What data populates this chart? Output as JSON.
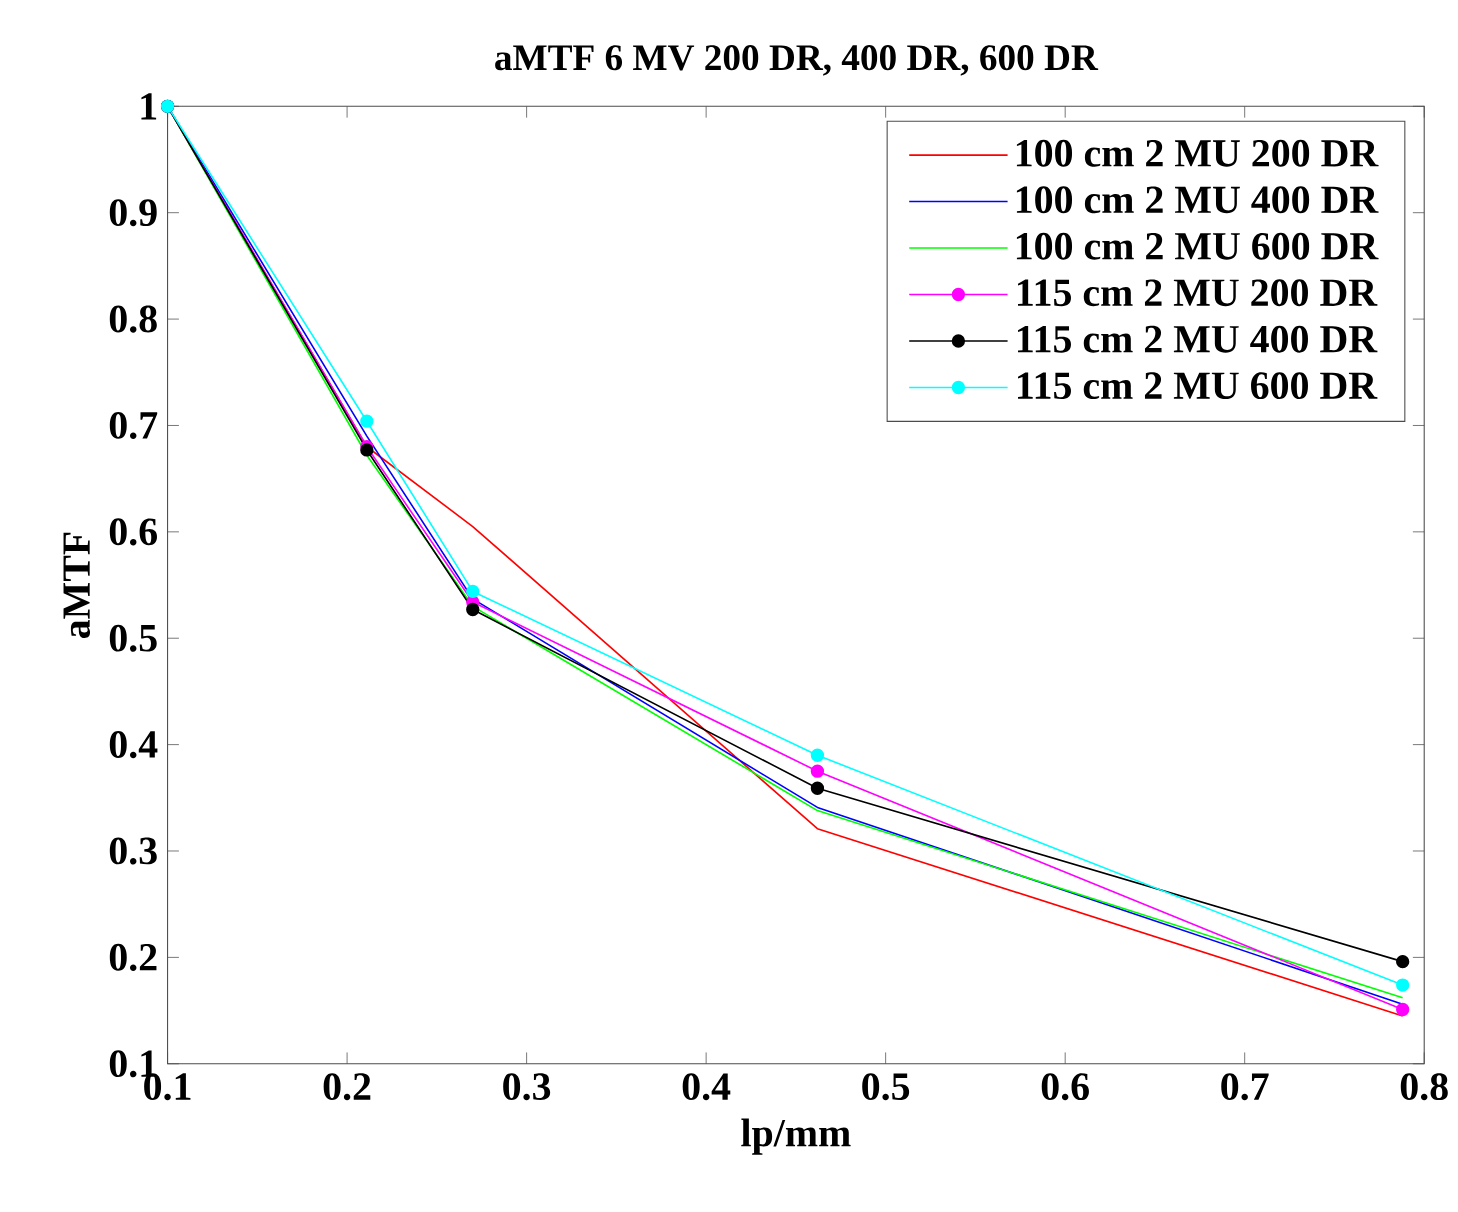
{
  "chart_data": {
    "type": "line",
    "title": "aMTF 6 MV 200 DR, 400 DR, 600 DR",
    "xlabel": "lp/mm",
    "ylabel": "aMTF",
    "x": [
      0.1,
      0.211,
      0.27,
      0.462,
      0.788
    ],
    "series": [
      {
        "name": "100 cm 2 MU 200 DR",
        "color": "#ff0000",
        "marker": "none",
        "values": [
          1.0,
          0.68,
          0.605,
          0.321,
          0.145
        ]
      },
      {
        "name": "100 cm 2 MU 400 DR",
        "color": "#0000ff",
        "marker": "none",
        "values": [
          1.0,
          0.69,
          0.537,
          0.341,
          0.156
        ]
      },
      {
        "name": "100 cm 2 MU 600 DR",
        "color": "#00ff00",
        "marker": "none",
        "values": [
          1.0,
          0.672,
          0.53,
          0.338,
          0.162
        ]
      },
      {
        "name": "115 cm 2 MU 200 DR",
        "color": "#ff00ff",
        "marker": "circle",
        "values": [
          1.0,
          0.68,
          0.534,
          0.375,
          0.151
        ]
      },
      {
        "name": "115 cm 2 MU 400 DR",
        "color": "#000000",
        "marker": "circle",
        "values": [
          1.0,
          0.677,
          0.527,
          0.359,
          0.196
        ]
      },
      {
        "name": "115 cm 2 MU 600 DR",
        "color": "#00ffff",
        "marker": "circle",
        "values": [
          1.0,
          0.704,
          0.544,
          0.39,
          0.174
        ]
      }
    ],
    "xlim": [
      0.1,
      0.8
    ],
    "ylim": [
      0.1,
      1
    ],
    "xticks": [
      0.1,
      0.2,
      0.3,
      0.4,
      0.5,
      0.6,
      0.7,
      0.8
    ],
    "yticks": [
      0.1,
      0.2,
      0.3,
      0.4,
      0.5,
      0.6,
      0.7,
      0.8,
      0.9,
      1
    ],
    "grid": false,
    "legend": "top right"
  }
}
